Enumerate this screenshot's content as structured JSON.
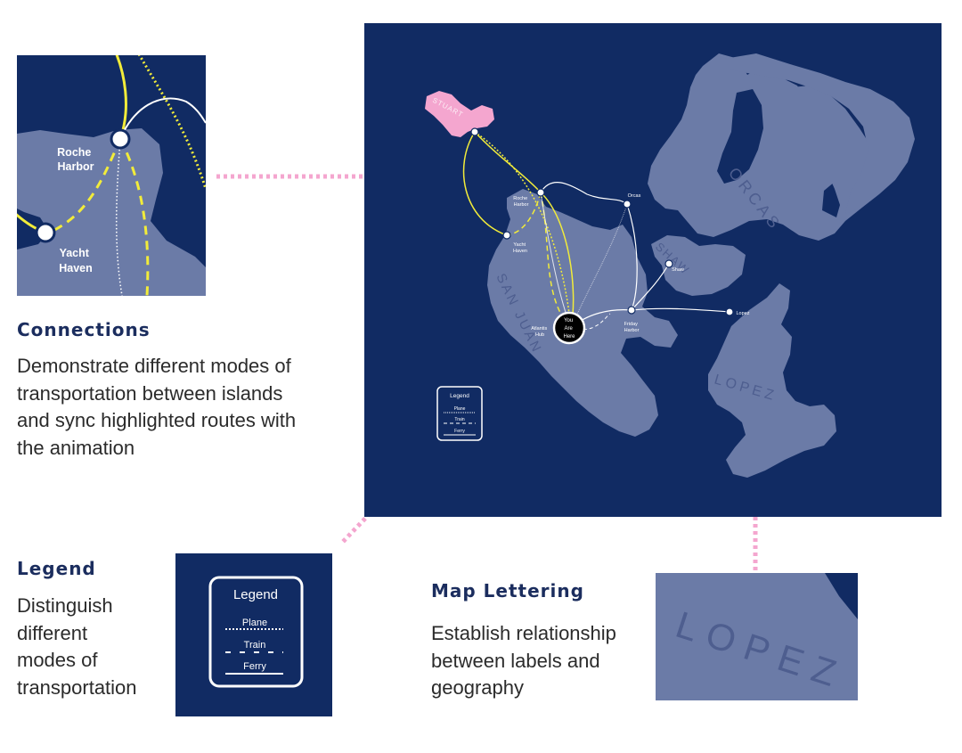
{
  "colors": {
    "ocean": "#112b63",
    "land": "#6b7ba7",
    "highlight_land": "#f4a6cf",
    "plane_route": "#f2ec3a",
    "ferry_route": "#ffffff",
    "connector": "#f4a6cf",
    "heading": "#1b2d5e"
  },
  "map": {
    "islands": {
      "orcas": "ORCAS",
      "shaw": "SHAW",
      "san_juan": "SAN JUAN",
      "lopez": "LOPEZ",
      "stuart": "STUART"
    },
    "stops": {
      "roche_harbor": [
        "Roche",
        "Harbor"
      ],
      "yacht_haven": [
        "Yacht",
        "Haven"
      ],
      "orcas": "Orcas",
      "shaw": "Shaw",
      "lopez": "Lopez",
      "friday_harbor": [
        "Friday",
        "Harbor"
      ],
      "atlantis_hub": [
        "Atlantis",
        "Hub"
      ],
      "you_are_here": [
        "You",
        "Are",
        "Here"
      ]
    },
    "legend": {
      "title": "Legend",
      "plane": "Plane",
      "train": "Train",
      "ferry": "Ferry"
    }
  },
  "detail_connections": {
    "roche_harbor": [
      "Roche",
      "Harbor"
    ],
    "yacht_haven": [
      "Yacht",
      "Haven"
    ]
  },
  "detail_legend": {
    "title": "Legend",
    "plane": "Plane",
    "train": "Train",
    "ferry": "Ferry"
  },
  "detail_lettering": {
    "label": "LOPEZ"
  },
  "sections": {
    "connections": {
      "heading": "Connections",
      "lines": [
        "Demonstrate different modes of",
        "transportation between islands",
        "and sync highlighted routes with",
        "the animation"
      ]
    },
    "legend": {
      "heading": "Legend",
      "lines": [
        "Distinguish",
        "different",
        "modes of",
        "transportation"
      ]
    },
    "lettering": {
      "heading": "Map Lettering",
      "lines": [
        "Establish relationship",
        "between labels and",
        "geography"
      ]
    }
  }
}
